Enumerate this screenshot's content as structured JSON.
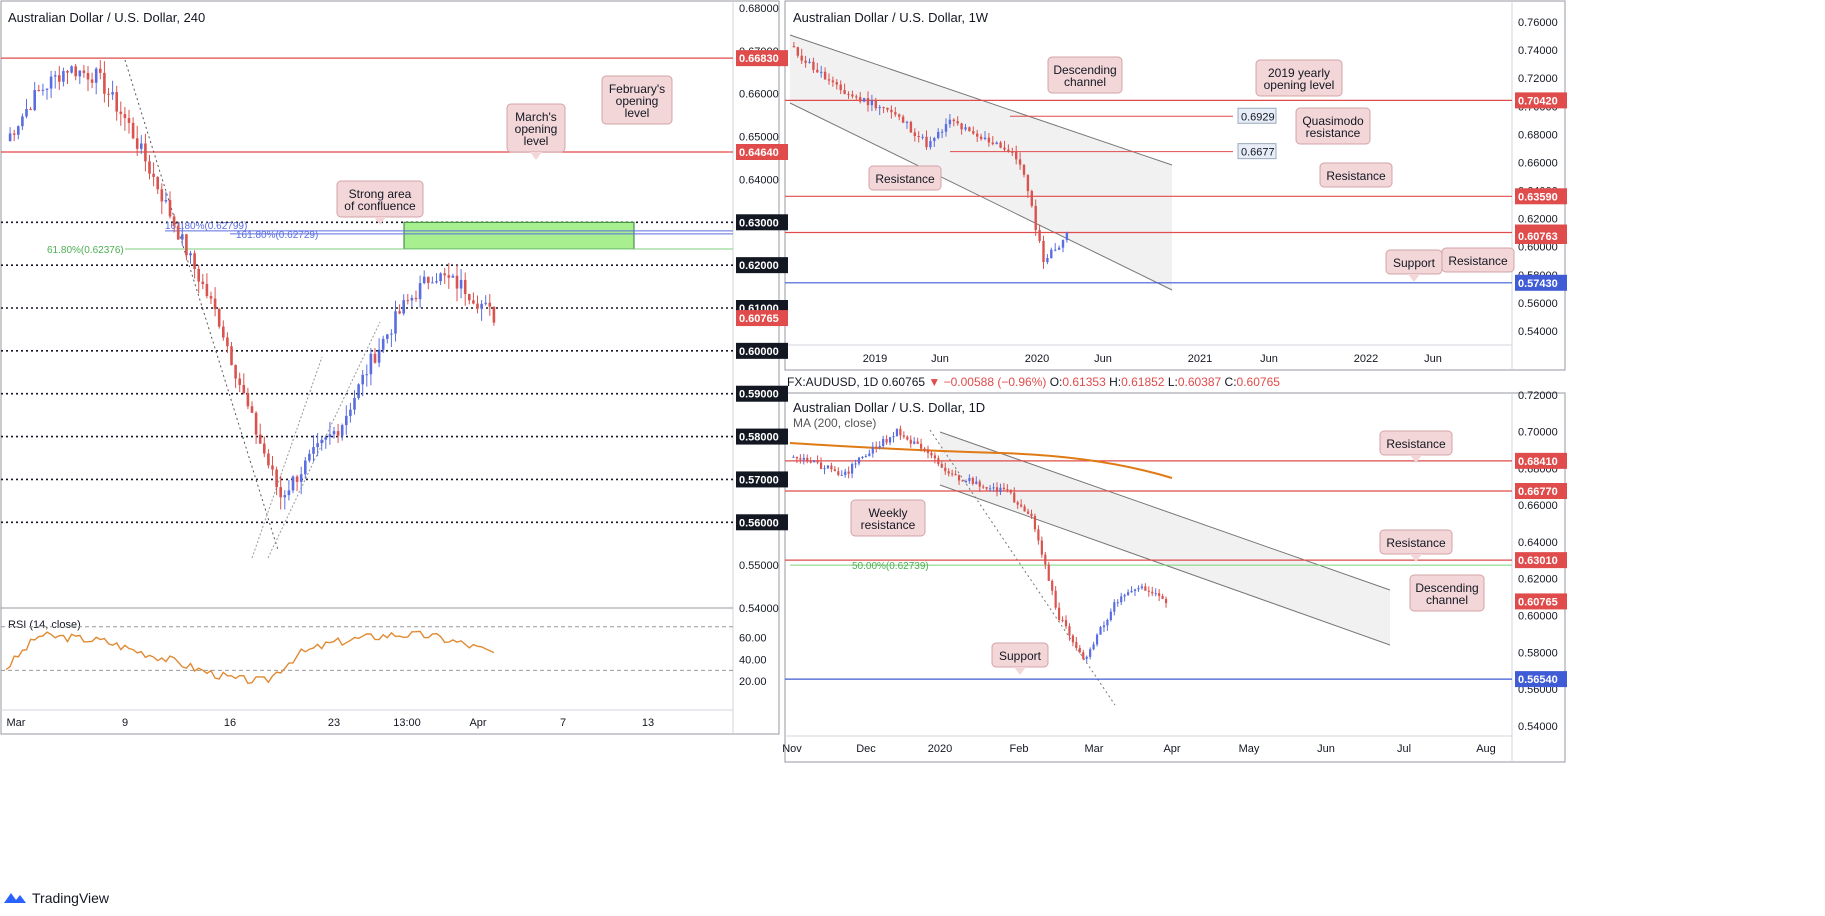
{
  "brand": {
    "name": "TradingView"
  },
  "colors": {
    "up": "#5b6ee1",
    "down": "#d9534f",
    "red_level": "#e04b4b",
    "blue_level": "#3f5bd6",
    "green_box": "#a8ef8f",
    "rsi": "#e08a32",
    "ma": "#e07a15",
    "note_bg": "#f2d6d8",
    "note_border": "#d4a3a8"
  },
  "chart_data": [
    {
      "id": "h4",
      "type": "candlestick",
      "title": "Australian Dollar / U.S. Dollar, 240",
      "ylim": [
        0.54,
        0.68
      ],
      "y_ticks": [
        "0.68000",
        "0.67000",
        "0.66000",
        "0.65000",
        "0.64000",
        "0.63000",
        "0.62000",
        "0.61000",
        "0.60000",
        "0.59000",
        "0.58000",
        "0.57000",
        "0.56000",
        "0.55000",
        "0.54000"
      ],
      "x_ticks": [
        "Mar",
        "9",
        "16",
        "23",
        "13:00",
        "Apr",
        "7",
        "13"
      ],
      "levels": [
        {
          "label": "0.66830",
          "kind": "red",
          "value": 0.6683
        },
        {
          "label": "0.64640",
          "kind": "red",
          "value": 0.6464
        },
        {
          "label": "0.63000",
          "kind": "black",
          "value": 0.63
        },
        {
          "label": "0.62000",
          "kind": "black",
          "value": 0.62
        },
        {
          "label": "0.61000",
          "kind": "black",
          "value": 0.61
        },
        {
          "label": "0.60000",
          "kind": "black",
          "value": 0.6
        },
        {
          "label": "0.59000",
          "kind": "black",
          "value": 0.59
        },
        {
          "label": "0.58000",
          "kind": "black",
          "value": 0.58
        },
        {
          "label": "0.57000",
          "kind": "black",
          "value": 0.57
        },
        {
          "label": "0.56000",
          "kind": "black",
          "value": 0.56
        }
      ],
      "price_label": "0.60765",
      "fib_labels": [
        "161.80%(0.62799)",
        "161.80%(0.62729)",
        "61.80%(0.62376)"
      ],
      "confluence_zone": [
        0.6238,
        0.63
      ],
      "annotations": [
        "February's opening level",
        "March's opening level",
        "Strong area of confluence"
      ],
      "rsi": {
        "label": "RSI (14, close)",
        "ticks": [
          "60.00",
          "40.00",
          "20.00"
        ],
        "bands": [
          70,
          30
        ]
      }
    },
    {
      "id": "w1",
      "type": "candlestick",
      "title": "Australian Dollar / U.S. Dollar, 1W",
      "ylim": [
        0.53,
        0.77
      ],
      "y_ticks": [
        "0.76000",
        "0.74000",
        "0.72000",
        "0.70000",
        "0.68000",
        "0.66000",
        "0.64000",
        "0.62000",
        "0.60000",
        "0.58000",
        "0.56000",
        "0.54000"
      ],
      "x_ticks": [
        "2019",
        "Jun",
        "2020",
        "Jun",
        "2021",
        "Jun",
        "2022",
        "Jun"
      ],
      "levels": [
        {
          "label": "0.70420",
          "kind": "red",
          "value": 0.7042
        },
        {
          "label": "0.63590",
          "kind": "red",
          "value": 0.6359
        },
        {
          "label": "0.61010",
          "kind": "red",
          "value": 0.6101
        },
        {
          "label": "0.57430",
          "kind": "blue",
          "value": 0.5743
        }
      ],
      "price_label": "0.60763",
      "small_labels": [
        "0.6929",
        "0.6677"
      ],
      "annotations": [
        "Descending channel",
        "2019 yearly opening level",
        "Quasimodo resistance",
        "Resistance",
        "Resistance",
        "Resistance",
        "Support"
      ]
    },
    {
      "id": "d1",
      "type": "candlestick",
      "title": "Australian Dollar / U.S. Dollar, 1D",
      "symbol_line": {
        "sym": "FX:AUDUSD, 1D",
        "last": "0.60765",
        "chg": "▼ −0.00588 (−0.96%)",
        "O": "0.61353",
        "H": "0.61852",
        "L": "0.60387",
        "C": "0.60765"
      },
      "ma_label": "MA (200, close)",
      "ylim": [
        0.535,
        0.721
      ],
      "y_ticks": [
        "0.72000",
        "0.70000",
        "0.68000",
        "0.66000",
        "0.64000",
        "0.62000",
        "0.60000",
        "0.58000",
        "0.56000",
        "0.54000"
      ],
      "x_ticks": [
        "Nov",
        "Dec",
        "2020",
        "Feb",
        "Mar",
        "Apr",
        "May",
        "Jun",
        "Jul",
        "Aug"
      ],
      "levels": [
        {
          "label": "0.68410",
          "kind": "red",
          "value": 0.6841
        },
        {
          "label": "0.66770",
          "kind": "red",
          "value": 0.6677
        },
        {
          "label": "0.63010",
          "kind": "red",
          "value": 0.6301
        },
        {
          "label": "0.56540",
          "kind": "blue",
          "value": 0.5654
        }
      ],
      "price_label": "0.60765",
      "fib_labels": [
        "50.00%(0.62739)"
      ],
      "annotations": [
        "Resistance",
        "Weekly resistance",
        "Resistance",
        "Descending channel",
        "Support"
      ]
    }
  ]
}
